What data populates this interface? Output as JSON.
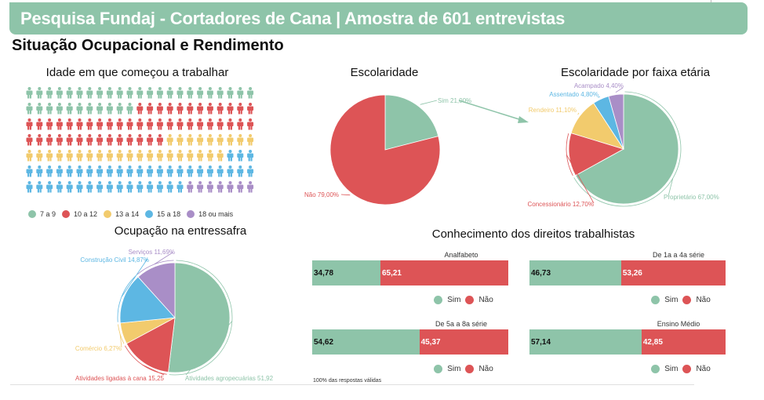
{
  "header": {
    "title": "Pesquisa Fundaj - Cortadores de Cana | Amostra de 601 entrevistas",
    "subtitle": "Situação Ocupacional e Rendimento"
  },
  "colors": {
    "green": "#8ec4a9",
    "red": "#dd5456",
    "yellow": "#f2cb6d",
    "blue": "#5db7e3",
    "purple": "#a98ec7"
  },
  "chart_data": [
    {
      "id": "idade",
      "type": "pictogram",
      "title": "Idade em que começou a trabalhar",
      "icon": "person-icon",
      "icons_per_row": 23,
      "categories": [
        "7 a 9",
        "10 a 12",
        "13 a 14",
        "15 a 18",
        "18 ou mais"
      ],
      "values": [
        34,
        49,
        29,
        42,
        7
      ],
      "colors": [
        "#8ec4a9",
        "#dd5456",
        "#f2cb6d",
        "#5db7e3",
        "#a98ec7"
      ],
      "legend_position": "bottom"
    },
    {
      "id": "escolaridade",
      "type": "pie",
      "title": "Escolaridade",
      "categories": [
        "Sim",
        "Não"
      ],
      "values": [
        21.0,
        79.0
      ],
      "labels": [
        "Sim 21,00%",
        "Não 79,00%"
      ],
      "colors": [
        "#8ec4a9",
        "#dd5456"
      ]
    },
    {
      "id": "faixa",
      "type": "pie",
      "title": "Escolaridade por faixa etária",
      "categories": [
        "Proprietário",
        "Concessionário",
        "Rendeiro",
        "Assentado",
        "Acampado"
      ],
      "values": [
        67.0,
        12.7,
        11.1,
        4.8,
        4.4
      ],
      "labels": [
        "Proprietário 67,00%",
        "Concessionário 12,70%",
        "Rendeiro 11,10%",
        "Assentado 4,80%",
        "Acampado 4,40%"
      ],
      "colors": [
        "#8ec4a9",
        "#dd5456",
        "#f2cb6d",
        "#5db7e3",
        "#a98ec7"
      ]
    },
    {
      "id": "ocupacao",
      "type": "pie",
      "title": "Ocupação na entressafra",
      "categories": [
        "Atividades agropecuárias",
        "Atividades ligadas à cana",
        "Comércio",
        "Construção Civil",
        "Serviços"
      ],
      "values": [
        51.92,
        15.25,
        6.27,
        14.87,
        11.69
      ],
      "labels": [
        "Atividades agropecuárias 51,92",
        "Atividades ligadas à cana 15,25",
        "Comércio 6,27%",
        "Construção Civil 14,87%",
        "Serviços 11,69%"
      ],
      "colors": [
        "#8ec4a9",
        "#dd5456",
        "#f2cb6d",
        "#5db7e3",
        "#a98ec7"
      ]
    },
    {
      "id": "direitos",
      "type": "bar",
      "stacked": true,
      "orientation": "horizontal",
      "title": "Conhecimento dos direitos trabalhistas",
      "series_names": [
        "Sim",
        "Não"
      ],
      "series_colors": [
        "#8ec4a9",
        "#dd5456"
      ],
      "groups": [
        {
          "name": "Analfabeto",
          "values": [
            34.78,
            65.21
          ],
          "labels": [
            "34,78",
            "65,21"
          ]
        },
        {
          "name": "De 1a a 4a série",
          "values": [
            46.73,
            53.26
          ],
          "labels": [
            "46,73",
            "53,26"
          ]
        },
        {
          "name": "De 5a a 8a série",
          "values": [
            54.62,
            45.37
          ],
          "labels": [
            "54,62",
            "45,37"
          ]
        },
        {
          "name": "Ensino Médio",
          "values": [
            57.14,
            42.85
          ],
          "labels": [
            "57,14",
            "42,85"
          ]
        }
      ],
      "footnote": "100% das respostas válidas"
    }
  ]
}
